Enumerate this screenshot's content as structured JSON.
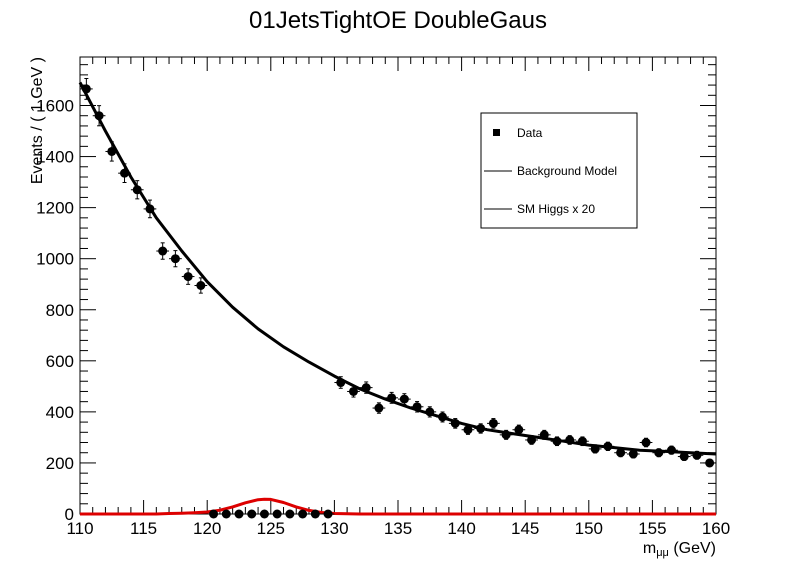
{
  "chart_data": {
    "type": "scatter",
    "title": "01JetsTightOE DoubleGaus",
    "xlabel": {
      "base": "m",
      "sub": "μμ",
      "unit": " (GeV)"
    },
    "ylabel": "Events / ( 1 GeV )",
    "xlim": [
      110,
      160
    ],
    "ylim": [
      0,
      1790
    ],
    "x_ticks": [
      "110",
      "115",
      "120",
      "125",
      "130",
      "135",
      "140",
      "145",
      "150",
      "155",
      "160"
    ],
    "y_ticks": [
      "0",
      "200",
      "400",
      "600",
      "800",
      "1000",
      "1200",
      "1400",
      "1600"
    ],
    "legend": {
      "position": "top-right",
      "entries": [
        "Data",
        "Background Model",
        "SM Higgs x 20"
      ]
    },
    "colors": {
      "data": "#000000",
      "background": "#000000",
      "signal": "#dd0000"
    },
    "series": [
      {
        "name": "Data",
        "type": "points-with-errors",
        "x": [
          110.5,
          111.5,
          112.5,
          113.5,
          114.5,
          115.5,
          116.5,
          117.5,
          118.5,
          119.5,
          120.5,
          121.5,
          122.5,
          123.5,
          124.5,
          125.5,
          126.5,
          127.5,
          128.5,
          129.5,
          130.5,
          131.5,
          132.5,
          133.5,
          134.5,
          135.5,
          136.5,
          137.5,
          138.5,
          139.5,
          140.5,
          141.5,
          142.5,
          143.5,
          144.5,
          145.5,
          146.5,
          147.5,
          148.5,
          149.5,
          150.5,
          151.5,
          152.5,
          153.5,
          154.5,
          155.5,
          156.5,
          157.5,
          158.5,
          159.5
        ],
        "y": [
          1665,
          1560,
          1420,
          1335,
          1270,
          1195,
          1030,
          1000,
          930,
          895,
          0,
          0,
          0,
          0,
          0,
          0,
          0,
          0,
          0,
          0,
          515,
          480,
          495,
          415,
          455,
          450,
          420,
          400,
          380,
          355,
          330,
          335,
          355,
          310,
          330,
          290,
          310,
          285,
          290,
          285,
          255,
          265,
          240,
          235,
          280,
          240,
          250,
          225,
          230,
          200
        ]
      },
      {
        "name": "Background Model",
        "type": "line",
        "x": [
          110,
          112,
          114,
          116,
          118,
          120,
          122,
          124,
          126,
          128,
          130,
          132,
          134,
          136,
          138,
          140,
          142,
          144,
          146,
          148,
          150,
          152,
          154,
          156,
          158,
          160
        ],
        "y": [
          1690,
          1500,
          1320,
          1160,
          1030,
          910,
          810,
          725,
          655,
          595,
          540,
          490,
          450,
          415,
          385,
          355,
          330,
          315,
          300,
          285,
          270,
          260,
          250,
          245,
          240,
          235
        ]
      },
      {
        "name": "SM Higgs x 20",
        "type": "line",
        "x": [
          110,
          116,
          117,
          118,
          119,
          120,
          121,
          122,
          123,
          124,
          124.5,
          125,
          126,
          127,
          128,
          129,
          130,
          131,
          132,
          160
        ],
        "y": [
          0,
          0,
          2,
          3,
          5,
          8,
          15,
          28,
          44,
          56,
          58,
          57,
          45,
          28,
          14,
          6,
          2,
          1,
          0,
          0
        ]
      }
    ]
  }
}
